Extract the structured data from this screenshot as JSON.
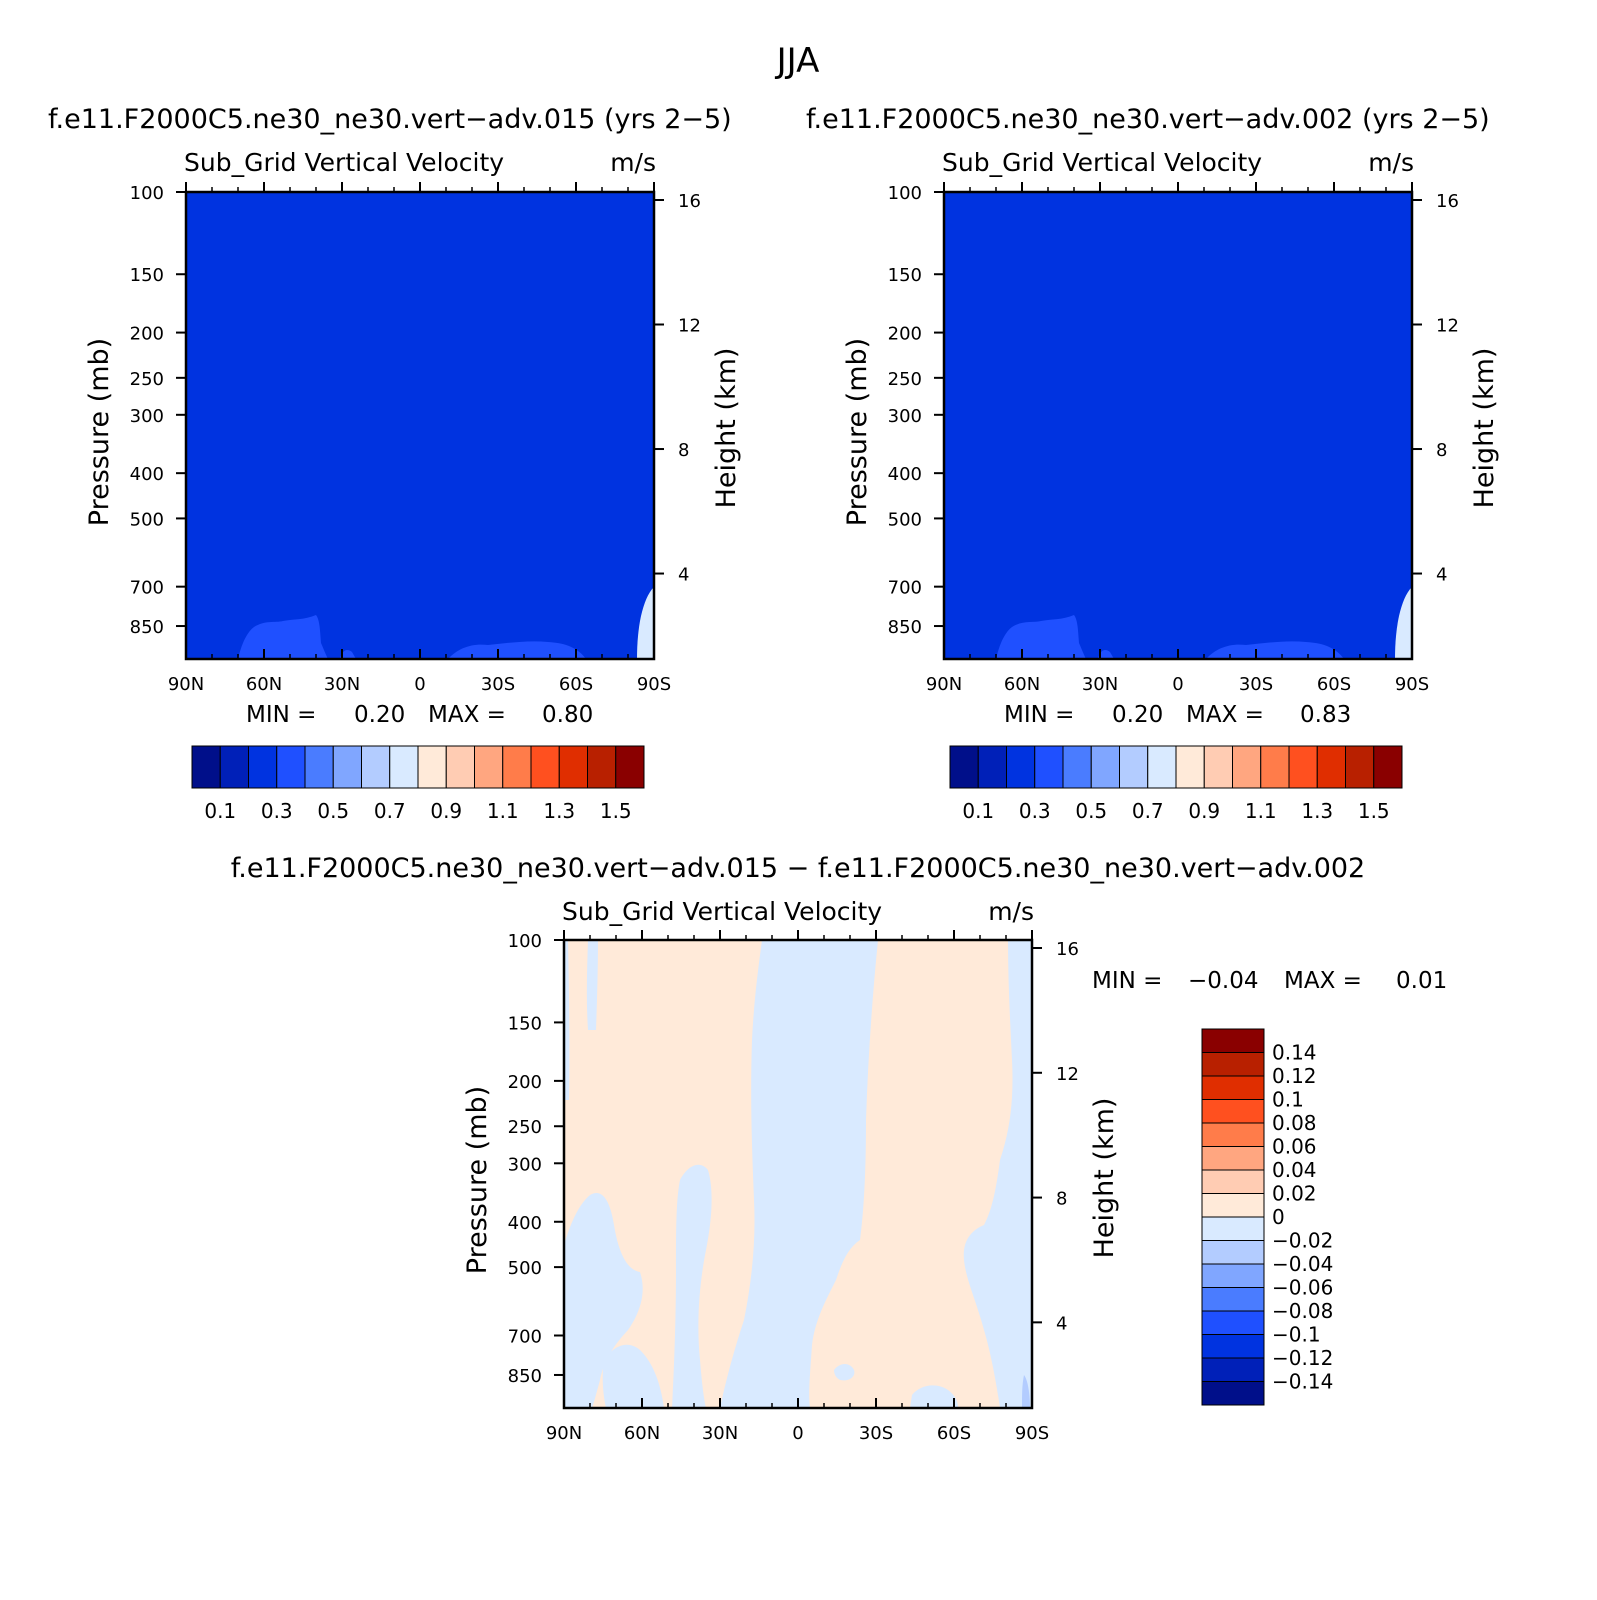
{
  "title": "JJA",
  "chart_data": [
    {
      "type": "heatmap",
      "case_title": "f.e11.F2000C5.ne30_ne30.vert−adv.015 (yrs 2−5)",
      "variable": "Sub_Grid Vertical Velocity",
      "units": "m/s",
      "xlabel": "",
      "ylabel": "Pressure (mb)",
      "ylabel_right": "Height (km)",
      "x_ticks": [
        "90N",
        "60N",
        "30N",
        "0",
        "30S",
        "60S",
        "90S"
      ],
      "y_ticks": [
        100,
        150,
        200,
        250,
        300,
        400,
        500,
        700,
        850
      ],
      "y_right_ticks": [
        16,
        12,
        8,
        4
      ],
      "xlim": [
        90,
        -90
      ],
      "ylim": [
        1000,
        100
      ],
      "y_scale": "log",
      "min_label": "MIN =",
      "min": "0.20",
      "max_label": "MAX =",
      "max": "0.80",
      "colorbar": {
        "orientation": "horizontal",
        "colors": [
          "#000f8a",
          "#0020b8",
          "#0033e0",
          "#1f50ff",
          "#4a7cff",
          "#80a6ff",
          "#b3ccff",
          "#d9eaff",
          "#ffead9",
          "#ffccb3",
          "#ffa680",
          "#ff7c4a",
          "#ff501f",
          "#e02e00",
          "#b82000",
          "#8a0000"
        ],
        "labels": [
          "0.1",
          "0.3",
          "0.5",
          "0.7",
          "0.9",
          "1.1",
          "1.3",
          "1.5"
        ]
      }
    },
    {
      "type": "heatmap",
      "case_title": "f.e11.F2000C5.ne30_ne30.vert−adv.002 (yrs 2−5)",
      "variable": "Sub_Grid Vertical Velocity",
      "units": "m/s",
      "xlabel": "",
      "ylabel": "Pressure (mb)",
      "ylabel_right": "Height (km)",
      "x_ticks": [
        "90N",
        "60N",
        "30N",
        "0",
        "30S",
        "60S",
        "90S"
      ],
      "y_ticks": [
        100,
        150,
        200,
        250,
        300,
        400,
        500,
        700,
        850
      ],
      "y_right_ticks": [
        16,
        12,
        8,
        4
      ],
      "xlim": [
        90,
        -90
      ],
      "ylim": [
        1000,
        100
      ],
      "y_scale": "log",
      "min_label": "MIN =",
      "min": "0.20",
      "max_label": "MAX =",
      "max": "0.83",
      "colorbar": {
        "orientation": "horizontal",
        "colors": [
          "#000f8a",
          "#0020b8",
          "#0033e0",
          "#1f50ff",
          "#4a7cff",
          "#80a6ff",
          "#b3ccff",
          "#d9eaff",
          "#ffead9",
          "#ffccb3",
          "#ffa680",
          "#ff7c4a",
          "#ff501f",
          "#e02e00",
          "#b82000",
          "#8a0000"
        ],
        "labels": [
          "0.1",
          "0.3",
          "0.5",
          "0.7",
          "0.9",
          "1.1",
          "1.3",
          "1.5"
        ]
      }
    },
    {
      "type": "heatmap",
      "case_title": "f.e11.F2000C5.ne30_ne30.vert−adv.015 − f.e11.F2000C5.ne30_ne30.vert−adv.002",
      "variable": "Sub_Grid Vertical Velocity",
      "units": "m/s",
      "xlabel": "",
      "ylabel": "Pressure (mb)",
      "ylabel_right": "Height (km)",
      "x_ticks": [
        "90N",
        "60N",
        "30N",
        "0",
        "30S",
        "60S",
        "90S"
      ],
      "y_ticks": [
        100,
        150,
        200,
        250,
        300,
        400,
        500,
        700,
        850
      ],
      "y_right_ticks": [
        16,
        12,
        8,
        4
      ],
      "xlim": [
        90,
        -90
      ],
      "ylim": [
        1000,
        100
      ],
      "y_scale": "log",
      "min_label": "MIN =",
      "min": "−0.04",
      "max_label": "MAX =",
      "max": "0.01",
      "colorbar": {
        "orientation": "vertical",
        "colors": [
          "#000f8a",
          "#0020b8",
          "#0033e0",
          "#1f50ff",
          "#4a7cff",
          "#80a6ff",
          "#b3ccff",
          "#d9eaff",
          "#ffead9",
          "#ffccb3",
          "#ffa680",
          "#ff7c4a",
          "#ff501f",
          "#e02e00",
          "#b82000",
          "#8a0000"
        ],
        "labels": [
          "−0.14",
          "−0.12",
          "−0.1",
          "−0.08",
          "−0.06",
          "−0.04",
          "−0.02",
          "0",
          "0.02",
          "0.04",
          "0.06",
          "0.08",
          "0.1",
          "0.12",
          "0.14"
        ]
      }
    }
  ]
}
